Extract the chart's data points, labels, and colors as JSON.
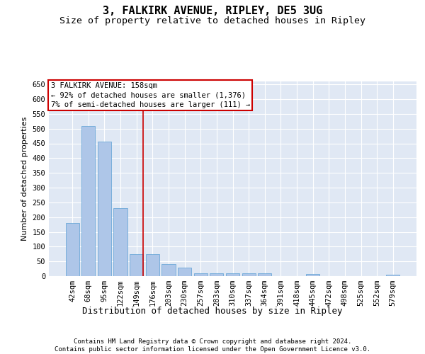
{
  "title1": "3, FALKIRK AVENUE, RIPLEY, DE5 3UG",
  "title2": "Size of property relative to detached houses in Ripley",
  "xlabel": "Distribution of detached houses by size in Ripley",
  "ylabel": "Number of detached properties",
  "categories": [
    "42sqm",
    "68sqm",
    "95sqm",
    "122sqm",
    "149sqm",
    "176sqm",
    "203sqm",
    "230sqm",
    "257sqm",
    "283sqm",
    "310sqm",
    "337sqm",
    "364sqm",
    "391sqm",
    "418sqm",
    "445sqm",
    "472sqm",
    "498sqm",
    "525sqm",
    "552sqm",
    "579sqm"
  ],
  "values": [
    180,
    510,
    455,
    230,
    75,
    75,
    40,
    30,
    10,
    10,
    10,
    10,
    10,
    0,
    0,
    8,
    0,
    0,
    0,
    0,
    5
  ],
  "bar_color": "#aec6e8",
  "bar_edge_color": "#5a9fd4",
  "background_color": "#e0e8f4",
  "grid_color": "#ffffff",
  "vline_color": "#cc0000",
  "annotation_box_text": "3 FALKIRK AVENUE: 158sqm\n← 92% of detached houses are smaller (1,376)\n7% of semi-detached houses are larger (111) →",
  "annotation_box_color": "#cc0000",
  "ylim": [
    0,
    660
  ],
  "yticks": [
    0,
    50,
    100,
    150,
    200,
    250,
    300,
    350,
    400,
    450,
    500,
    550,
    600,
    650
  ],
  "footer": "Contains HM Land Registry data © Crown copyright and database right 2024.\nContains public sector information licensed under the Open Government Licence v3.0.",
  "title1_fontsize": 11,
  "title2_fontsize": 9.5,
  "xlabel_fontsize": 9,
  "ylabel_fontsize": 8,
  "tick_fontsize": 7.5,
  "annotation_fontsize": 7.5,
  "footer_fontsize": 6.5
}
